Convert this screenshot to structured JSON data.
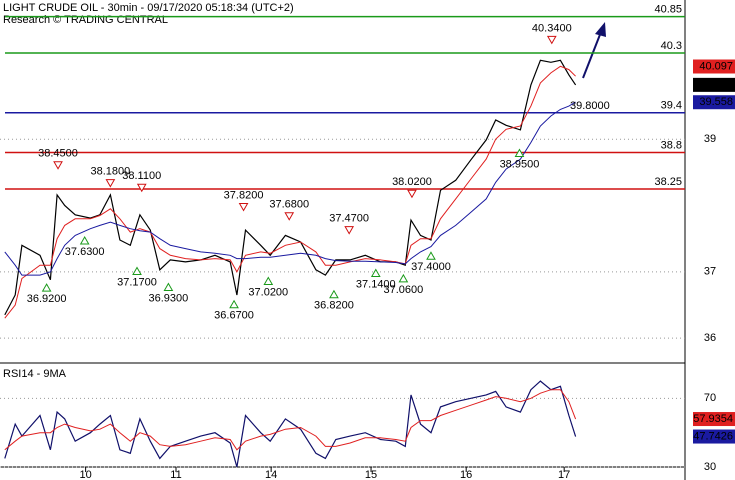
{
  "chart_data": [
    {
      "type": "line",
      "title": "LIGHT CRUDE OIL - 30min - 09/17/2020 05:18:34 (UTC+2)",
      "subtitle": "Research © TRADING CENTRAL",
      "xlim": [
        0,
        72
      ],
      "ylim": [
        35.64,
        41.1
      ],
      "yticks": [
        36,
        37,
        39
      ],
      "grid": true,
      "x": [
        0.5,
        1.6,
        2.3,
        4.2,
        5.3,
        6,
        6.8,
        7.9,
        9.5,
        10.5,
        11.6,
        12.6,
        13.7,
        14.7,
        15.8,
        16.8,
        17.9,
        19.5,
        21.1,
        22.6,
        24.2,
        24.9,
        25.8,
        27.4,
        28.4,
        30,
        31.6,
        33.2,
        34.2,
        35.3,
        36.8,
        38.4,
        40,
        41.6,
        42.6,
        43.2,
        44.2,
        45.3,
        46.3,
        47.9,
        49.5,
        51.1,
        52.1,
        53.2,
        54.7,
        55.8,
        56.8,
        57.9,
        58.9,
        59.8,
        60.5
      ],
      "series": [
        {
          "color": "#000000",
          "values": [
            36.35,
            36.65,
            37.4,
            37.25,
            36.88,
            38.16,
            38.0,
            37.86,
            37.81,
            37.86,
            38.16,
            37.48,
            37.4,
            37.86,
            37.63,
            37.03,
            37.18,
            37.15,
            37.18,
            37.25,
            37.15,
            36.65,
            37.63,
            37.4,
            37.25,
            37.55,
            37.45,
            37.03,
            36.95,
            37.18,
            37.18,
            37.25,
            37.15,
            37.15,
            37.1,
            37.78,
            37.55,
            37.48,
            38.23,
            38.38,
            38.69,
            38.99,
            39.29,
            39.21,
            39.14,
            39.82,
            40.19,
            40.16,
            40.19,
            39.97,
            39.82
          ]
        },
        {
          "color": "#e02020",
          "values": [
            36.3,
            36.5,
            36.9,
            37.1,
            37.1,
            37.5,
            37.7,
            37.8,
            37.8,
            37.85,
            37.95,
            37.8,
            37.6,
            37.65,
            37.6,
            37.35,
            37.25,
            37.2,
            37.18,
            37.2,
            37.18,
            37.0,
            37.25,
            37.3,
            37.28,
            37.4,
            37.45,
            37.3,
            37.1,
            37.1,
            37.15,
            37.2,
            37.18,
            37.15,
            37.12,
            37.4,
            37.5,
            37.5,
            37.8,
            38.1,
            38.4,
            38.7,
            39.0,
            39.15,
            39.2,
            39.5,
            39.85,
            40.0,
            40.1,
            40.05,
            39.95
          ]
        },
        {
          "color": "#1a1aa0",
          "values": [
            37.3,
            37.1,
            36.95,
            36.95,
            37.0,
            37.2,
            37.4,
            37.55,
            37.65,
            37.7,
            37.75,
            37.7,
            37.65,
            37.62,
            37.6,
            37.5,
            37.4,
            37.35,
            37.3,
            37.28,
            37.25,
            37.2,
            37.2,
            37.22,
            37.22,
            37.25,
            37.28,
            37.25,
            37.2,
            37.17,
            37.16,
            37.16,
            37.15,
            37.14,
            37.12,
            37.2,
            37.3,
            37.38,
            37.55,
            37.7,
            37.9,
            38.1,
            38.35,
            38.55,
            38.7,
            38.95,
            39.2,
            39.35,
            39.45,
            39.5,
            39.56
          ]
        }
      ],
      "levels": [
        {
          "value": 40.85,
          "color": "#1a9a1a"
        },
        {
          "value": 40.3,
          "color": "#1a9a1a"
        },
        {
          "value": 39.4,
          "color": "#1a1aa0"
        },
        {
          "value": 38.8,
          "color": "#d01010"
        },
        {
          "value": 38.25,
          "color": "#d01010"
        }
      ],
      "annotations": [
        {
          "kind": "high",
          "x": 6.1,
          "value": 38.45,
          "label": "38.4500"
        },
        {
          "kind": "high",
          "x": 11.6,
          "value": 38.18,
          "label": "38.1800"
        },
        {
          "kind": "high",
          "x": 14.9,
          "value": 38.11,
          "label": "38.1100"
        },
        {
          "kind": "high",
          "x": 25.6,
          "value": 37.82,
          "label": "37.8200"
        },
        {
          "kind": "high",
          "x": 30.4,
          "value": 37.68,
          "label": "37.6800"
        },
        {
          "kind": "high",
          "x": 36.7,
          "value": 37.47,
          "label": "37.4700"
        },
        {
          "kind": "high",
          "x": 43.3,
          "value": 38.02,
          "label": "38.0200"
        },
        {
          "kind": "high",
          "x": 58,
          "value": 40.34,
          "label": "40.3400"
        },
        {
          "kind": "low",
          "x": 4.9,
          "value": 36.92,
          "label": "36.9200"
        },
        {
          "kind": "low",
          "x": 8.9,
          "value": 37.63,
          "label": "37.6300"
        },
        {
          "kind": "low",
          "x": 14.4,
          "value": 37.17,
          "label": "37.1700"
        },
        {
          "kind": "low",
          "x": 17.7,
          "value": 36.93,
          "label": "36.9300"
        },
        {
          "kind": "low",
          "x": 24.6,
          "value": 36.67,
          "label": "36.6700"
        },
        {
          "kind": "low",
          "x": 28.2,
          "value": 37.02,
          "label": "37.0200"
        },
        {
          "kind": "low",
          "x": 35.1,
          "value": 36.82,
          "label": "36.8200"
        },
        {
          "kind": "low",
          "x": 39.5,
          "value": 37.14,
          "label": "37.1400"
        },
        {
          "kind": "low",
          "x": 42.4,
          "value": 37.06,
          "label": "37.0600"
        },
        {
          "kind": "low",
          "x": 45.3,
          "value": 37.4,
          "label": "37.4000"
        },
        {
          "kind": "low",
          "x": 54.6,
          "value": 38.95,
          "label": "38.9500"
        },
        {
          "kind": "label",
          "x": 62,
          "value": 39.8,
          "label": "39.8000"
        }
      ],
      "price_tags": [
        {
          "value": 40.097,
          "label": "40.097",
          "color": "#e02020"
        },
        {
          "value": 39.82,
          "color": "#000000"
        },
        {
          "value": 39.558,
          "color": "#1a1aa0"
        }
      ]
    },
    {
      "type": "line",
      "title": "RSI14 - 9MA",
      "xlim": [
        0,
        72
      ],
      "ylim": [
        30,
        89.4
      ],
      "yticks": [
        30,
        70
      ],
      "grid": true,
      "xticks": [
        {
          "value": 9,
          "label": "10"
        },
        {
          "value": 18.5,
          "label": "11"
        },
        {
          "value": 28.5,
          "label": "14"
        },
        {
          "value": 39,
          "label": "15"
        },
        {
          "value": 49,
          "label": "16"
        },
        {
          "value": 59.3,
          "label": "17"
        }
      ],
      "x": [
        0.5,
        1.6,
        2.3,
        4.2,
        5.3,
        6,
        6.8,
        7.9,
        9.5,
        10.5,
        11.6,
        12.6,
        13.7,
        14.7,
        15.8,
        16.8,
        17.9,
        19.5,
        21.1,
        22.6,
        24.2,
        24.9,
        25.8,
        27.4,
        28.4,
        30,
        31.6,
        33.2,
        34.2,
        35.3,
        36.8,
        38.4,
        40,
        41.6,
        42.6,
        43.2,
        44.2,
        45.3,
        46.3,
        47.9,
        49.5,
        51.1,
        52.1,
        53.2,
        54.7,
        55.8,
        56.8,
        57.9,
        58.9,
        59.8,
        60.5
      ],
      "series": [
        {
          "color": "#10106a",
          "values": [
            35,
            55,
            48,
            60,
            40,
            62,
            58,
            45,
            50,
            55,
            60,
            40,
            38,
            58,
            45,
            35,
            42,
            45,
            48,
            50,
            44,
            30,
            60,
            50,
            45,
            58,
            52,
            38,
            35,
            46,
            48,
            50,
            46,
            45,
            42,
            72,
            55,
            50,
            65,
            68,
            70,
            72,
            74,
            65,
            62,
            75,
            80,
            75,
            77,
            60,
            47.7
          ]
        },
        {
          "color": "#e02020",
          "values": [
            40,
            45,
            48,
            50,
            50,
            53,
            55,
            53,
            51,
            52,
            55,
            50,
            45,
            50,
            48,
            43,
            42,
            43,
            45,
            47,
            46,
            40,
            45,
            48,
            49,
            52,
            53,
            48,
            42,
            42,
            44,
            47,
            47,
            46,
            45,
            53,
            57,
            57,
            60,
            63,
            66,
            69,
            71,
            70,
            68,
            70,
            73,
            75,
            75,
            68,
            57.9
          ]
        }
      ],
      "price_tags": [
        {
          "value": 57.9354,
          "color": "#e02020"
        },
        {
          "value": 47.7426,
          "color": "#1a1aa0"
        }
      ]
    }
  ]
}
